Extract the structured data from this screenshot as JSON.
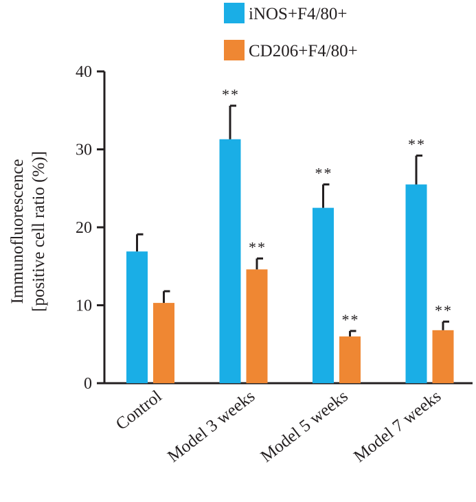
{
  "chart_data": {
    "type": "bar",
    "title": "",
    "ylabel_lines": [
      "Immunofluorescence",
      "[positive cell ratio (%)]"
    ],
    "xlabel": "",
    "categories": [
      "Control",
      "Model 3 weeks",
      "Model 5 weeks",
      "Model 7 weeks"
    ],
    "ylim": [
      0,
      40
    ],
    "yticks": [
      "0",
      "10",
      "20",
      "30",
      "40"
    ],
    "ytick_values": [
      0,
      10,
      20,
      30,
      40
    ],
    "grid": false,
    "legend_position": "top-right",
    "series": [
      {
        "name": "iNOS+F4/80+",
        "color": "#1aaee6",
        "values": [
          16.9,
          31.3,
          22.5,
          25.5
        ],
        "errors": [
          2.2,
          4.3,
          3.0,
          3.7
        ],
        "significance": [
          "",
          "**",
          "**",
          "**"
        ]
      },
      {
        "name": "CD206+F4/80+",
        "color": "#ef8733",
        "values": [
          10.3,
          14.6,
          6.0,
          6.8
        ],
        "errors": [
          1.5,
          1.4,
          0.7,
          1.1
        ],
        "significance": [
          "",
          "**",
          "**",
          "**"
        ]
      }
    ]
  }
}
